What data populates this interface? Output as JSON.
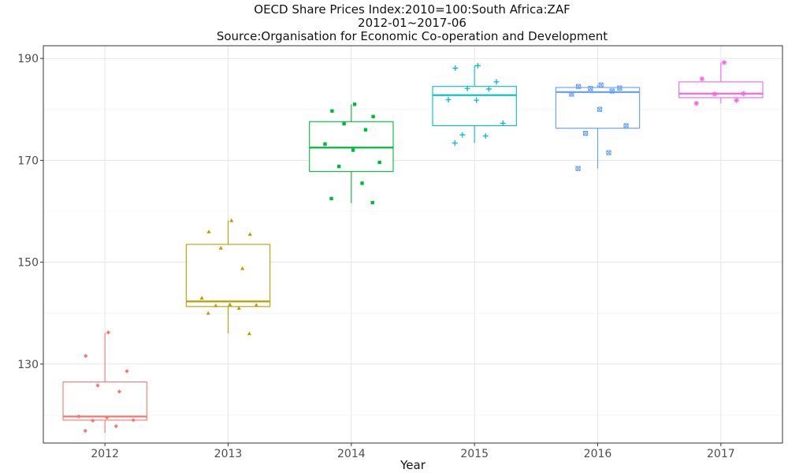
{
  "chart_data": {
    "type": "boxplot",
    "title": "OECD Share Prices Index:2010=100:South Africa:ZAF",
    "subtitle": "2012-01~2017-06",
    "source": "Source:Organisation for Economic Co-operation and Development",
    "xlabel": "Year",
    "ylabel": "",
    "categories": [
      "2012",
      "2013",
      "2014",
      "2015",
      "2016",
      "2017"
    ],
    "y_ticks": [
      130,
      150,
      170,
      190
    ],
    "ylim": [
      114.5,
      192.5
    ],
    "grid": true,
    "legend": "none",
    "boxes": [
      {
        "category": "2012",
        "color": "#F8766D",
        "marker": "diamond",
        "min": 116.5,
        "q1": 119.0,
        "median": 119.7,
        "q3": 126.5,
        "max": 136.2,
        "points": [
          136.2,
          131.6,
          128.6,
          125.8,
          124.6,
          119.7,
          119.5,
          119.0,
          118.9,
          117.8,
          116.9
        ]
      },
      {
        "category": "2013",
        "color": "#B79F00",
        "marker": "triangle",
        "min": 136.0,
        "q1": 141.3,
        "median": 142.3,
        "q3": 153.5,
        "max": 158.2,
        "points": [
          158.2,
          156.0,
          155.5,
          152.8,
          148.8,
          143.0,
          141.7,
          141.6,
          141.5,
          141.0,
          140.0,
          136.0
        ]
      },
      {
        "category": "2014",
        "color": "#00BA38",
        "marker": "square",
        "min": 161.6,
        "q1": 167.8,
        "median": 172.5,
        "q3": 177.6,
        "max": 181.0,
        "points": [
          181.0,
          179.7,
          178.6,
          177.2,
          176.0,
          173.2,
          172.0,
          169.6,
          168.8,
          165.5,
          162.5,
          161.7
        ]
      },
      {
        "category": "2015",
        "color": "#00BFC4",
        "marker": "plus",
        "min": 173.4,
        "q1": 176.8,
        "median": 182.8,
        "q3": 184.5,
        "max": 188.6,
        "points": [
          188.6,
          188.1,
          185.4,
          184.1,
          184.0,
          181.9,
          181.8,
          177.3,
          175.0,
          174.8,
          173.4
        ]
      },
      {
        "category": "2016",
        "color": "#619CFF",
        "marker": "boxx",
        "min": 168.4,
        "q1": 176.3,
        "median": 183.4,
        "q3": 184.3,
        "max": 184.8,
        "points": [
          184.8,
          184.5,
          184.2,
          184.1,
          183.6,
          183.0,
          180.0,
          176.8,
          175.3,
          171.5,
          168.4
        ]
      },
      {
        "category": "2017",
        "color": "#F564E3",
        "marker": "star",
        "min": 181.2,
        "q1": 182.3,
        "median": 183.1,
        "q3": 185.4,
        "max": 189.2,
        "points": [
          189.2,
          186.0,
          183.1,
          183.0,
          181.8,
          181.2
        ]
      }
    ]
  }
}
